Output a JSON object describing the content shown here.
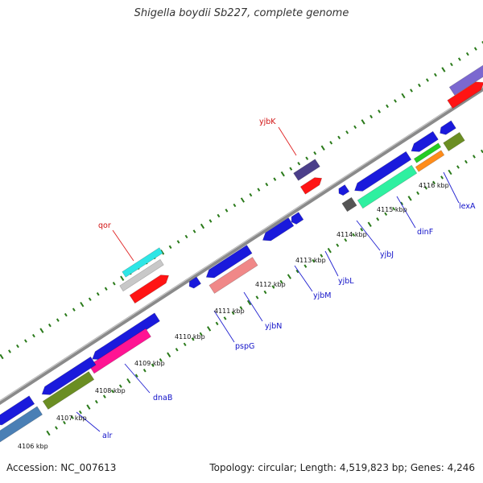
{
  "title": "Shigella boydii Sb227, complete genome",
  "footer": {
    "accession": "Accession: NC_007613",
    "summary": "Topology: circular; Length: 4,519,823 bp; Genes: 4,246"
  },
  "colors": {
    "backbone": "#8a8a8a",
    "tick": "#2a7a1a",
    "gene_label_forward": "#d11010",
    "gene_label_reverse": "#1010c8",
    "leader_forward": "#e02020",
    "leader_reverse": "#2020d0"
  },
  "kbp_labels": [
    {
      "id": "4106",
      "text": "4106 kbp"
    },
    {
      "id": "4107",
      "text": "4107 kbp"
    },
    {
      "id": "4108",
      "text": "4108 kbp"
    },
    {
      "id": "4109",
      "text": "4109 kbp"
    },
    {
      "id": "4110",
      "text": "4110 kbp"
    },
    {
      "id": "4111",
      "text": "4111 kbp"
    },
    {
      "id": "4112",
      "text": "4112 kbp"
    },
    {
      "id": "4113",
      "text": "4113 kbp"
    },
    {
      "id": "4114",
      "text": "4114 kbp"
    },
    {
      "id": "4115",
      "text": "4115 kbp"
    },
    {
      "id": "4116",
      "text": "4116 kbp"
    }
  ],
  "gene_labels": [
    {
      "id": "qor",
      "text": "qor",
      "strand": "forward"
    },
    {
      "id": "yjbK",
      "text": "yjbK",
      "strand": "forward"
    },
    {
      "id": "alr",
      "text": "alr",
      "strand": "reverse"
    },
    {
      "id": "dnaB",
      "text": "dnaB",
      "strand": "reverse"
    },
    {
      "id": "pspG",
      "text": "pspG",
      "strand": "reverse"
    },
    {
      "id": "yjbN",
      "text": "yjbN",
      "strand": "reverse"
    },
    {
      "id": "yjbM",
      "text": "yjbM",
      "strand": "reverse"
    },
    {
      "id": "yjbL",
      "text": "yjbL",
      "strand": "reverse"
    },
    {
      "id": "yjbJ",
      "text": "yjbJ",
      "strand": "reverse"
    },
    {
      "id": "dinF",
      "text": "dinF",
      "strand": "reverse"
    },
    {
      "id": "lexA",
      "text": "lexA",
      "strand": "reverse"
    }
  ]
}
